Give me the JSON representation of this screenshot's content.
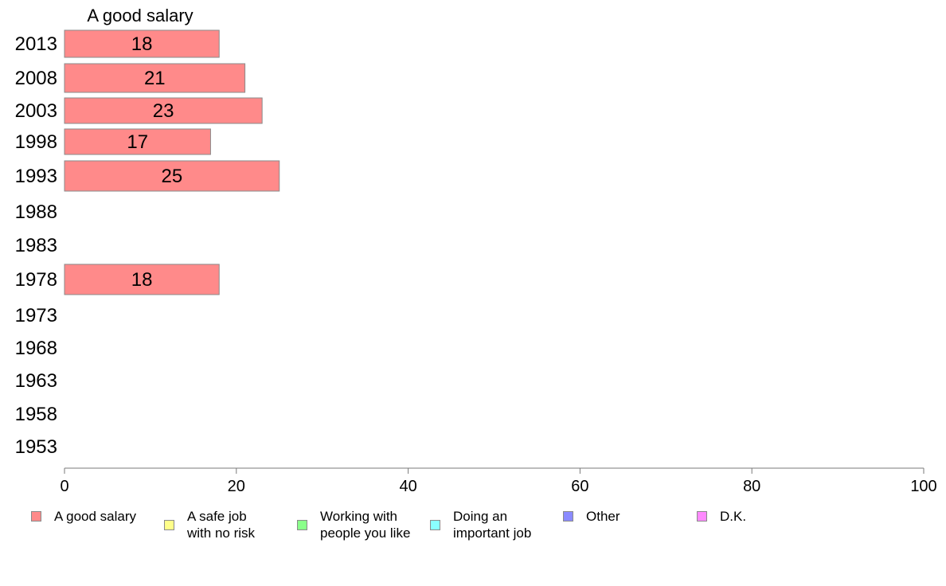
{
  "chart_data": {
    "type": "bar",
    "orientation": "horizontal",
    "series_title": "A good salary",
    "categories": [
      "2013",
      "2008",
      "2003",
      "1998",
      "1993",
      "1988",
      "1983",
      "1978",
      "1973",
      "1968",
      "1963",
      "1958",
      "1953"
    ],
    "series": [
      {
        "name": "A good salary",
        "color": "#ff8a8a",
        "values": [
          18,
          21,
          23,
          17,
          25,
          null,
          null,
          18,
          null,
          null,
          null,
          null,
          null
        ],
        "labels": [
          "18",
          "21",
          "23",
          "17",
          "25",
          "",
          "",
          "18",
          "",
          "",
          "",
          "",
          ""
        ]
      }
    ],
    "xlim": [
      0,
      100
    ],
    "xticks": [
      "0",
      "20",
      "40",
      "60",
      "80",
      "100"
    ],
    "grid": false,
    "legend_position": "bottom",
    "legend": [
      {
        "label": "A good salary",
        "color": "#ff8a8a"
      },
      {
        "label": "A safe job\nwith no risk",
        "color": "#ffff8a"
      },
      {
        "label": "Working with\npeople you like",
        "color": "#8aff8a"
      },
      {
        "label": "Doing an\nimportant job",
        "color": "#8affff"
      },
      {
        "label": "Other",
        "color": "#8a8aff"
      },
      {
        "label": "D.K.",
        "color": "#ff8aff"
      }
    ]
  }
}
